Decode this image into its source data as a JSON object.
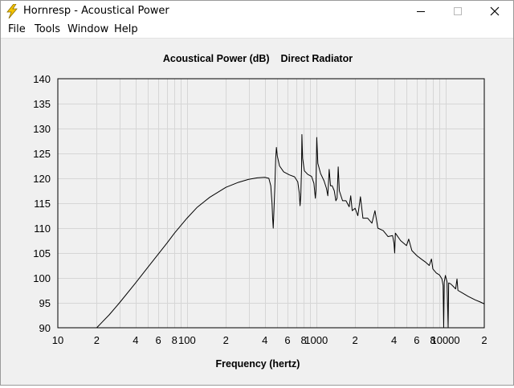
{
  "window": {
    "title": "Hornresp - Acoustical Power"
  },
  "titlebar": {
    "icon": "lightning-bolt-icon",
    "minimize_icon": "minimize-icon",
    "maximize_icon": "maximize-icon",
    "close_icon": "close-icon"
  },
  "menu": {
    "file": "File",
    "tools": "Tools",
    "window": "Window",
    "help": "Help"
  },
  "chart_data": {
    "type": "line",
    "title": "Acoustical Power (dB)    Direct Radiator",
    "xlabel": "Frequency (hertz)",
    "ylabel": "",
    "x_scale": "log",
    "xlim": [
      10,
      20000
    ],
    "ylim": [
      90,
      140
    ],
    "grid": true,
    "y_ticks": [
      "140",
      "135",
      "130",
      "125",
      "120",
      "115",
      "110",
      "105",
      "100",
      "95",
      "90"
    ],
    "x_ticks": [
      {
        "label": "10",
        "value": 10
      },
      {
        "label": "2",
        "value": 20
      },
      {
        "label": "4",
        "value": 40
      },
      {
        "label": "6",
        "value": 60
      },
      {
        "label": "8",
        "value": 80
      },
      {
        "label": "100",
        "value": 100
      },
      {
        "label": "2",
        "value": 200
      },
      {
        "label": "4",
        "value": 400
      },
      {
        "label": "6",
        "value": 600
      },
      {
        "label": "8",
        "value": 800
      },
      {
        "label": "1000",
        "value": 1000
      },
      {
        "label": "2",
        "value": 2000
      },
      {
        "label": "4",
        "value": 4000
      },
      {
        "label": "6",
        "value": 6000
      },
      {
        "label": "8",
        "value": 8000
      },
      {
        "label": "10000",
        "value": 10000
      },
      {
        "label": "2",
        "value": 20000
      }
    ],
    "series": [
      {
        "color": "#000000",
        "points": [
          [
            20,
            90.0
          ],
          [
            25,
            92.6
          ],
          [
            30,
            95.0
          ],
          [
            40,
            99.0
          ],
          [
            50,
            102.2
          ],
          [
            60,
            104.8
          ],
          [
            70,
            107.0
          ],
          [
            80,
            109.0
          ],
          [
            100,
            112.0
          ],
          [
            120,
            114.2
          ],
          [
            150,
            116.2
          ],
          [
            200,
            118.2
          ],
          [
            250,
            119.2
          ],
          [
            300,
            119.8
          ],
          [
            350,
            120.1
          ],
          [
            400,
            120.2
          ],
          [
            430,
            120.0
          ],
          [
            445,
            118.5
          ],
          [
            455,
            115.0
          ],
          [
            460,
            112.0
          ],
          [
            465,
            110.0
          ],
          [
            470,
            113.0
          ],
          [
            478,
            118.0
          ],
          [
            486,
            124.0
          ],
          [
            492,
            126.2
          ],
          [
            500,
            124.5
          ],
          [
            520,
            122.5
          ],
          [
            560,
            121.3
          ],
          [
            620,
            120.7
          ],
          [
            680,
            120.3
          ],
          [
            720,
            119.3
          ],
          [
            740,
            117.0
          ],
          [
            750,
            114.5
          ],
          [
            760,
            116.5
          ],
          [
            770,
            122.0
          ],
          [
            775,
            128.8
          ],
          [
            785,
            124.0
          ],
          [
            810,
            121.5
          ],
          [
            860,
            120.8
          ],
          [
            920,
            120.4
          ],
          [
            960,
            119.0
          ],
          [
            985,
            116.0
          ],
          [
            995,
            117.5
          ],
          [
            1010,
            128.2
          ],
          [
            1030,
            123.0
          ],
          [
            1080,
            121.0
          ],
          [
            1150,
            119.5
          ],
          [
            1200,
            118.0
          ],
          [
            1230,
            116.5
          ],
          [
            1260,
            121.8
          ],
          [
            1290,
            118.5
          ],
          [
            1330,
            118.5
          ],
          [
            1380,
            117.5
          ],
          [
            1420,
            115.5
          ],
          [
            1450,
            116.0
          ],
          [
            1480,
            122.3
          ],
          [
            1510,
            117.5
          ],
          [
            1600,
            115.5
          ],
          [
            1700,
            115.5
          ],
          [
            1800,
            114.3
          ],
          [
            1850,
            116.5
          ],
          [
            1900,
            113.5
          ],
          [
            2000,
            114.0
          ],
          [
            2100,
            112.5
          ],
          [
            2200,
            116.3
          ],
          [
            2300,
            112.0
          ],
          [
            2500,
            112.0
          ],
          [
            2700,
            111.0
          ],
          [
            2850,
            113.5
          ],
          [
            3000,
            110.0
          ],
          [
            3300,
            109.5
          ],
          [
            3600,
            108.3
          ],
          [
            3900,
            108.5
          ],
          [
            4000,
            107.0
          ],
          [
            4050,
            105.0
          ],
          [
            4100,
            109.0
          ],
          [
            4500,
            107.5
          ],
          [
            5000,
            106.5
          ],
          [
            5200,
            107.8
          ],
          [
            5500,
            105.5
          ],
          [
            6000,
            104.5
          ],
          [
            6500,
            103.8
          ],
          [
            7000,
            103.2
          ],
          [
            7500,
            102.5
          ],
          [
            7800,
            103.8
          ],
          [
            8000,
            101.8
          ],
          [
            8500,
            101.0
          ],
          [
            9000,
            100.6
          ],
          [
            9400,
            99.8
          ],
          [
            9600,
            98.5
          ],
          [
            9700,
            90.0
          ],
          [
            9800,
            99.2
          ],
          [
            10000,
            100.5
          ],
          [
            10300,
            99.2
          ],
          [
            10500,
            90.0
          ],
          [
            10600,
            99.0
          ],
          [
            11000,
            98.8
          ],
          [
            11500,
            98.3
          ],
          [
            12000,
            97.8
          ],
          [
            12300,
            99.8
          ],
          [
            12500,
            97.5
          ],
          [
            13500,
            97.0
          ],
          [
            15000,
            96.3
          ],
          [
            17000,
            95.6
          ],
          [
            18500,
            95.2
          ],
          [
            20000,
            94.8
          ]
        ]
      }
    ]
  }
}
